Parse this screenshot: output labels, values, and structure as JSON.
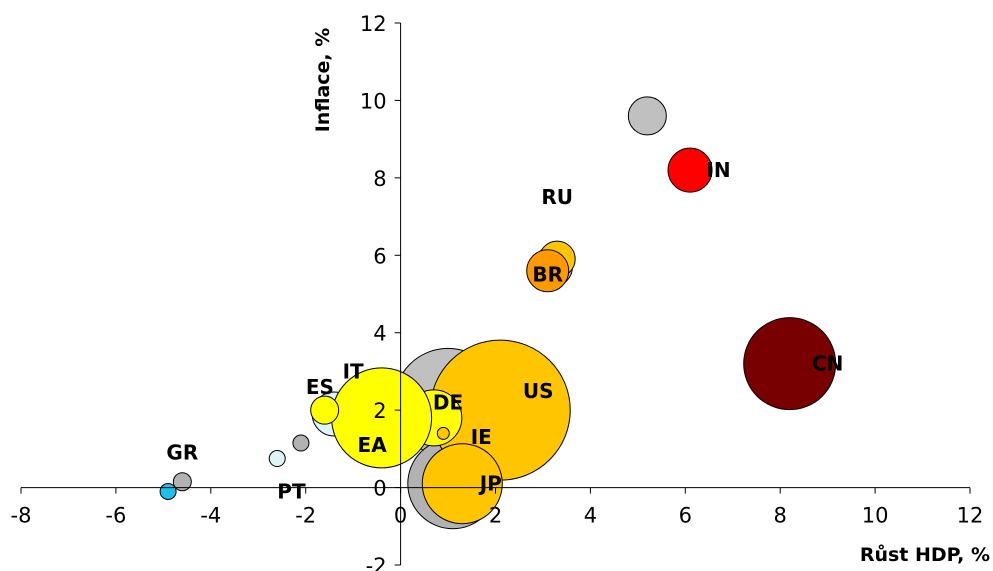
{
  "chart_data": {
    "type": "scatter",
    "xlabel": "Růst HDP, %",
    "ylabel": "Inflace, %",
    "xlim": [
      -8,
      12
    ],
    "ylim": [
      -2,
      12
    ],
    "x_ticks": [
      -8,
      -6,
      -4,
      -2,
      0,
      2,
      4,
      6,
      8,
      10,
      12
    ],
    "y_ticks": [
      -2,
      0,
      2,
      4,
      6,
      8,
      10,
      12
    ],
    "grid": false,
    "bubbles": [
      {
        "x": 1.0,
        "y": 2.2,
        "size": 54,
        "color": "#c0c0c0"
      },
      {
        "x": 1.1,
        "y": 0.1,
        "size": 45,
        "color": "#b2b2b2"
      },
      {
        "x": 5.2,
        "y": 9.6,
        "size": 19,
        "color": "#c0c0c0"
      },
      {
        "x": 3.2,
        "y": 5.7,
        "size": 20,
        "color": "#b2b2b2"
      },
      {
        "x": -2.1,
        "y": 1.15,
        "size": 8,
        "color": "#b2b2b2"
      },
      {
        "x": -4.6,
        "y": 0.15,
        "size": 9,
        "color": "#b2b2b2"
      },
      {
        "x": -1.4,
        "y": 1.9,
        "size": 22,
        "color": "#ddf5f9"
      },
      {
        "x": -2.6,
        "y": 0.75,
        "size": 8,
        "color": "#ddf5f9"
      },
      {
        "x": -4.9,
        "y": -0.1,
        "size": 8,
        "color": "#21c0ea"
      },
      {
        "x": 2.1,
        "y": 2.0,
        "size": 70,
        "color": "#ffc600"
      },
      {
        "x": 8.2,
        "y": 3.2,
        "size": 46,
        "color": "#780000"
      },
      {
        "x": 6.1,
        "y": 8.2,
        "size": 22,
        "color": "#ff0000"
      },
      {
        "x": 3.3,
        "y": 5.9,
        "size": 18,
        "color": "#ffc600"
      },
      {
        "x": 3.1,
        "y": 5.6,
        "size": 21,
        "color": "#ff9900"
      },
      {
        "x": 0.7,
        "y": 1.8,
        "size": 28,
        "color": "#ffff00"
      },
      {
        "x": -0.4,
        "y": 1.8,
        "size": 50,
        "color": "#ffff00"
      },
      {
        "x": -1.6,
        "y": 2.0,
        "size": 14,
        "color": "#ffff00"
      },
      {
        "x": 0.9,
        "y": 1.4,
        "size": 6,
        "color": "#ffc600"
      },
      {
        "x": 1.3,
        "y": 0.1,
        "size": 40,
        "color": "#ffc600"
      }
    ],
    "labels": [
      {
        "text": "IN",
        "x": 6.7,
        "y": 8.2
      },
      {
        "text": "RU",
        "x": 3.3,
        "y": 7.5
      },
      {
        "text": "BR",
        "x": 3.1,
        "y": 5.5
      },
      {
        "text": "CN",
        "x": 9.0,
        "y": 3.2
      },
      {
        "text": "US",
        "x": 2.9,
        "y": 2.5
      },
      {
        "text": "IT",
        "x": -1.0,
        "y": 3.0
      },
      {
        "text": "ES",
        "x": -1.7,
        "y": 2.6
      },
      {
        "text": "DE",
        "x": 1.0,
        "y": 2.2
      },
      {
        "text": "EA",
        "x": -0.6,
        "y": 1.1
      },
      {
        "text": "IE",
        "x": 1.7,
        "y": 1.3
      },
      {
        "text": "JP",
        "x": 1.9,
        "y": 0.1
      },
      {
        "text": "GR",
        "x": -4.6,
        "y": 0.9
      },
      {
        "text": "PT",
        "x": -2.3,
        "y": -0.1
      }
    ]
  }
}
